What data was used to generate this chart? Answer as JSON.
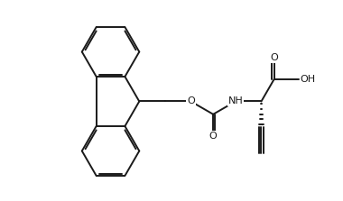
{
  "background_color": "#ffffff",
  "line_color": "#1a1a1a",
  "line_width": 1.4,
  "figsize": [
    3.8,
    2.23
  ],
  "dpi": 100,
  "xlim": [
    0,
    9.5
  ],
  "ylim": [
    0,
    5.55
  ],
  "font_size": 8.0
}
